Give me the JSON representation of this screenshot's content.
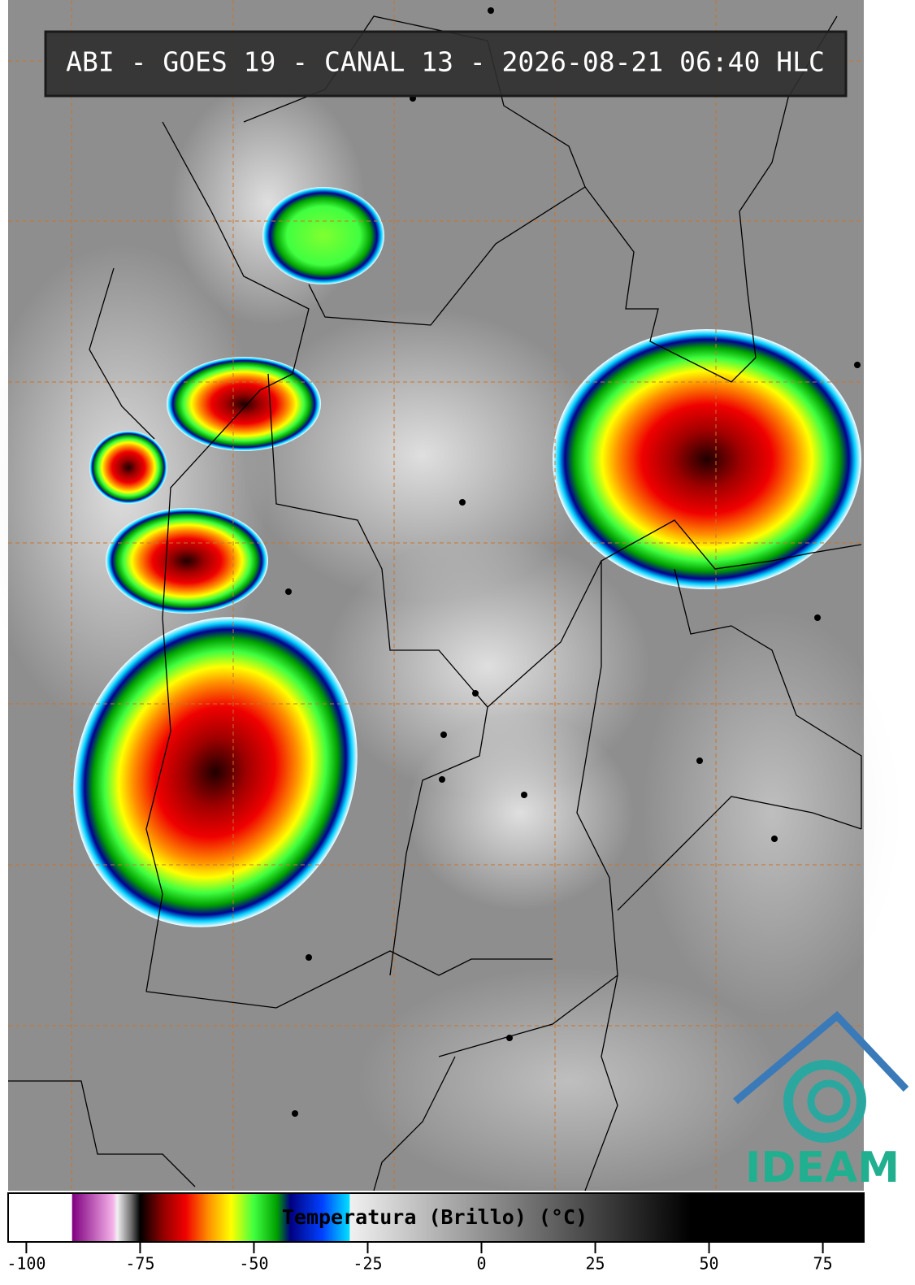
{
  "title": "ABI - GOES 19 - CANAL 13 - 2026-08-21 06:40 HLC",
  "logo": "IDEAM",
  "colorbar": {
    "label": "Temperatura (Brillo) (°C)",
    "xlim": [
      -104,
      84
    ],
    "xticks": [
      -100,
      -75,
      -50,
      -25,
      0,
      25,
      50,
      75
    ],
    "colormap": [
      {
        "value": -104,
        "color": "#ffffff"
      },
      {
        "value": -90,
        "color": "#ffffff"
      },
      {
        "value": -89.9,
        "color": "#800080"
      },
      {
        "value": -81,
        "color": "#f4b0e8"
      },
      {
        "value": -80,
        "color": "#f0f0f0"
      },
      {
        "value": -77,
        "color": "#707070"
      },
      {
        "value": -75,
        "color": "#000000"
      },
      {
        "value": -70,
        "color": "#900000"
      },
      {
        "value": -65,
        "color": "#f00000"
      },
      {
        "value": -60,
        "color": "#ff9000"
      },
      {
        "value": -55,
        "color": "#ffff00"
      },
      {
        "value": -50,
        "color": "#40ff40"
      },
      {
        "value": -45,
        "color": "#00a000"
      },
      {
        "value": -42,
        "color": "#000080"
      },
      {
        "value": -35,
        "color": "#0040ff"
      },
      {
        "value": -29,
        "color": "#00e0ff"
      },
      {
        "value": -28.9,
        "color": "#f0f0f0"
      },
      {
        "value": 46,
        "color": "#000000"
      },
      {
        "value": 84,
        "color": "#000000"
      }
    ]
  }
}
